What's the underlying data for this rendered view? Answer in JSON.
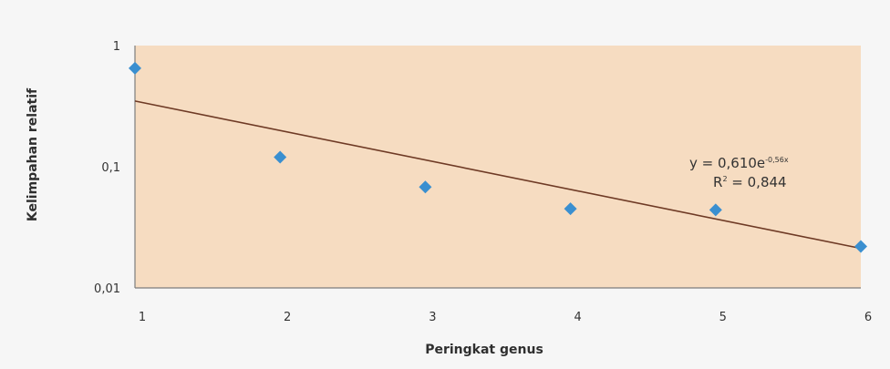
{
  "chart_data": {
    "type": "scatter",
    "xlabel": "Peringkat genus",
    "ylabel": "Kelimpahan relatif",
    "xlim": [
      1,
      6
    ],
    "ylim": [
      0.01,
      1
    ],
    "y_scale": "log",
    "x_ticks": [
      "1",
      "2",
      "3",
      "4",
      "5",
      "6"
    ],
    "y_ticks": [
      {
        "value": 1,
        "label": "1"
      },
      {
        "value": 0.1,
        "label": "0,1"
      },
      {
        "value": 0.01,
        "label": "0,01"
      }
    ],
    "grid": false,
    "series": [
      {
        "x": [
          1,
          2,
          3,
          4,
          5,
          6
        ],
        "y": [
          0.65,
          0.12,
          0.068,
          0.045,
          0.044,
          0.022
        ],
        "color": "#3a8fd0"
      }
    ],
    "trendline": {
      "type": "exponential",
      "a": 0.61,
      "b": -0.56,
      "color": "#6e3a25"
    },
    "annotation": {
      "equation_main": "y = 0,610e",
      "equation_exp": "-0,56x",
      "r2_label": "R",
      "r2_sup": "2",
      "r2_value": " = 0,844"
    },
    "colors": {
      "plot_background": "#f6dcc1",
      "page_background": "#f6f6f6",
      "axis": "#7d7d7d"
    }
  }
}
